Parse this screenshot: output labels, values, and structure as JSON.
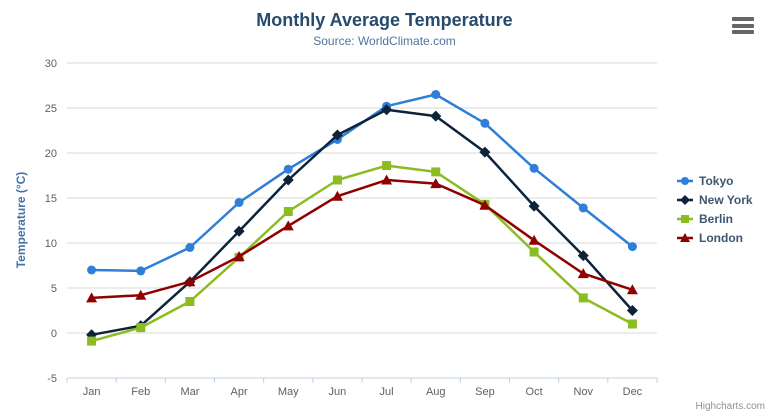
{
  "header": {
    "title": "Monthly Average Temperature",
    "subtitle": "Source: WorldClimate.com"
  },
  "credits": {
    "label": "Highcharts.com"
  },
  "icons": {
    "export_menu": "hamburger-icon"
  },
  "colors": {
    "title": "#274b6d",
    "subtitle": "#4d759e",
    "axis_label": "#606060",
    "axis_title": "#4572a7",
    "grid_line": "#d8d8d8",
    "axis_line": "#c0d0e0",
    "legend_text": "#3e576f"
  },
  "chart_data": {
    "type": "line",
    "title": "Monthly Average Temperature",
    "subtitle": "Source: WorldClimate.com",
    "categories": [
      "Jan",
      "Feb",
      "Mar",
      "Apr",
      "May",
      "Jun",
      "Jul",
      "Aug",
      "Sep",
      "Oct",
      "Nov",
      "Dec"
    ],
    "series": [
      {
        "name": "Tokyo",
        "color": "#2f7ed8",
        "marker": "circle",
        "values": [
          7.0,
          6.9,
          9.5,
          14.5,
          18.2,
          21.5,
          25.2,
          26.5,
          23.3,
          18.3,
          13.9,
          9.6
        ]
      },
      {
        "name": "New York",
        "color": "#0d233a",
        "marker": "diamond",
        "values": [
          -0.2,
          0.8,
          5.7,
          11.3,
          17.0,
          22.0,
          24.8,
          24.1,
          20.1,
          14.1,
          8.6,
          2.5
        ]
      },
      {
        "name": "Berlin",
        "color": "#8bbc21",
        "marker": "square",
        "values": [
          -0.9,
          0.6,
          3.5,
          8.4,
          13.5,
          17.0,
          18.6,
          17.9,
          14.3,
          9.0,
          3.9,
          1.0
        ]
      },
      {
        "name": "London",
        "color": "#910000",
        "marker": "triangle",
        "values": [
          3.9,
          4.2,
          5.7,
          8.5,
          11.9,
          15.2,
          17.0,
          16.6,
          14.2,
          10.3,
          6.6,
          4.8
        ]
      }
    ],
    "xlabel": "",
    "ylabel": "Temperature (°C)",
    "ylim": [
      -5,
      30
    ],
    "ytick_step": 5,
    "yticks": [
      -5,
      0,
      5,
      10,
      15,
      20,
      25,
      30
    ],
    "grid": true,
    "legend_position": "right"
  }
}
